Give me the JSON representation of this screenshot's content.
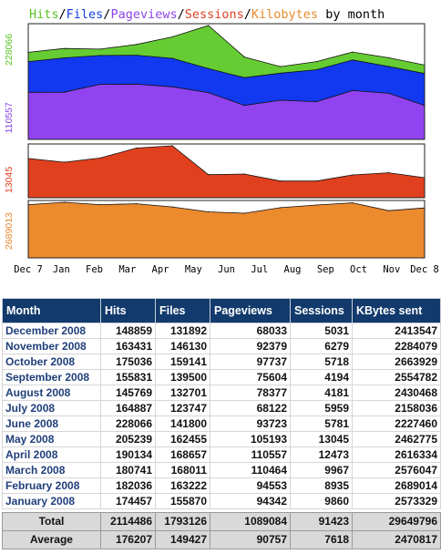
{
  "chart_data": [
    {
      "type": "area",
      "title_parts": [
        {
          "text": "Hits",
          "color": "#5bc324"
        },
        {
          "text": "/",
          "color": "#000000"
        },
        {
          "text": "Files",
          "color": "#1339e8"
        },
        {
          "text": "/",
          "color": "#000000"
        },
        {
          "text": "Pageviews",
          "color": "#8b45e8"
        },
        {
          "text": "/",
          "color": "#000000"
        },
        {
          "text": "Sessions",
          "color": "#e04022"
        },
        {
          "text": "/",
          "color": "#000000"
        },
        {
          "text": "Kilobytes",
          "color": "#e88a2d"
        },
        {
          "text": " by month",
          "color": "#000000"
        }
      ],
      "x_tick_labels": [
        "Dec 7",
        "Jan",
        "Feb",
        "Mar",
        "Apr",
        "May",
        "Jun",
        "Jul",
        "Aug",
        "Sep",
        "Oct",
        "Nov",
        "Dec 8"
      ],
      "panels": [
        {
          "name": "hits-files-pageviews",
          "axis_labels": [
            {
              "text": "228066",
              "color": "#5bc324"
            },
            {
              "text": "110557",
              "color": "#8b45e8"
            }
          ],
          "ylim": [
            0,
            228066
          ],
          "series": [
            {
              "name": "Hits",
              "color": "#66cc33",
              "values": [
                174457,
                182036,
                180741,
                190134,
                205239,
                228066,
                164887,
                145769,
                155831,
                175036,
                163431,
                148859
              ]
            },
            {
              "name": "Files",
              "color": "#1238f0",
              "values": [
                155870,
                163222,
                168011,
                168657,
                162455,
                141800,
                123747,
                132701,
                139500,
                159141,
                146130,
                131892
              ]
            },
            {
              "name": "Pageviews",
              "color": "#9243f0",
              "values": [
                94342,
                94553,
                110464,
                110557,
                105193,
                93723,
                68122,
                78377,
                75604,
                97737,
                92379,
                68033
              ]
            }
          ]
        },
        {
          "name": "sessions",
          "axis_labels": [
            {
              "text": "13045",
              "color": "#e04022"
            }
          ],
          "ylim": [
            0,
            13045
          ],
          "series": [
            {
              "name": "Sessions",
              "color": "#e1401e",
              "values": [
                9860,
                8935,
                9967,
                12473,
                13045,
                5781,
                5959,
                4181,
                4194,
                5718,
                6279,
                5031
              ]
            }
          ]
        },
        {
          "name": "kilobytes",
          "axis_labels": [
            {
              "text": "2689013",
              "color": "#e88a2d"
            }
          ],
          "ylim": [
            0,
            2689014
          ],
          "series": [
            {
              "name": "Kilobytes",
              "color": "#ec8a2e",
              "values": [
                2573329,
                2689014,
                2576047,
                2616334,
                2462775,
                2227460,
                2158036,
                2430468,
                2554782,
                2663929,
                2284079,
                2413547
              ]
            }
          ]
        }
      ]
    },
    {
      "type": "table",
      "headers": [
        "Month",
        "Hits",
        "Files",
        "Pageviews",
        "Sessions",
        "KBytes sent"
      ],
      "rows": [
        [
          "December 2008",
          "148859",
          "131892",
          "68033",
          "5031",
          "2413547"
        ],
        [
          "November 2008",
          "163431",
          "146130",
          "92379",
          "6279",
          "2284079"
        ],
        [
          "October 2008",
          "175036",
          "159141",
          "97737",
          "5718",
          "2663929"
        ],
        [
          "September 2008",
          "155831",
          "139500",
          "75604",
          "4194",
          "2554782"
        ],
        [
          "August 2008",
          "145769",
          "132701",
          "78377",
          "4181",
          "2430468"
        ],
        [
          "July 2008",
          "164887",
          "123747",
          "68122",
          "5959",
          "2158036"
        ],
        [
          "June 2008",
          "228066",
          "141800",
          "93723",
          "5781",
          "2227460"
        ],
        [
          "May 2008",
          "205239",
          "162455",
          "105193",
          "13045",
          "2462775"
        ],
        [
          "April 2008",
          "190134",
          "168657",
          "110557",
          "12473",
          "2616334"
        ],
        [
          "March 2008",
          "180741",
          "168011",
          "110464",
          "9967",
          "2576047"
        ],
        [
          "February 2008",
          "182036",
          "163222",
          "94553",
          "8935",
          "2689014"
        ],
        [
          "January 2008",
          "174457",
          "155870",
          "94342",
          "9860",
          "2573329"
        ]
      ],
      "total": {
        "label": "Total",
        "values": [
          "2114486",
          "1793126",
          "1089084",
          "91423",
          "29649796"
        ]
      },
      "average": {
        "label": "Average",
        "values": [
          "176207",
          "149427",
          "90757",
          "7618",
          "2470817"
        ]
      }
    }
  ]
}
